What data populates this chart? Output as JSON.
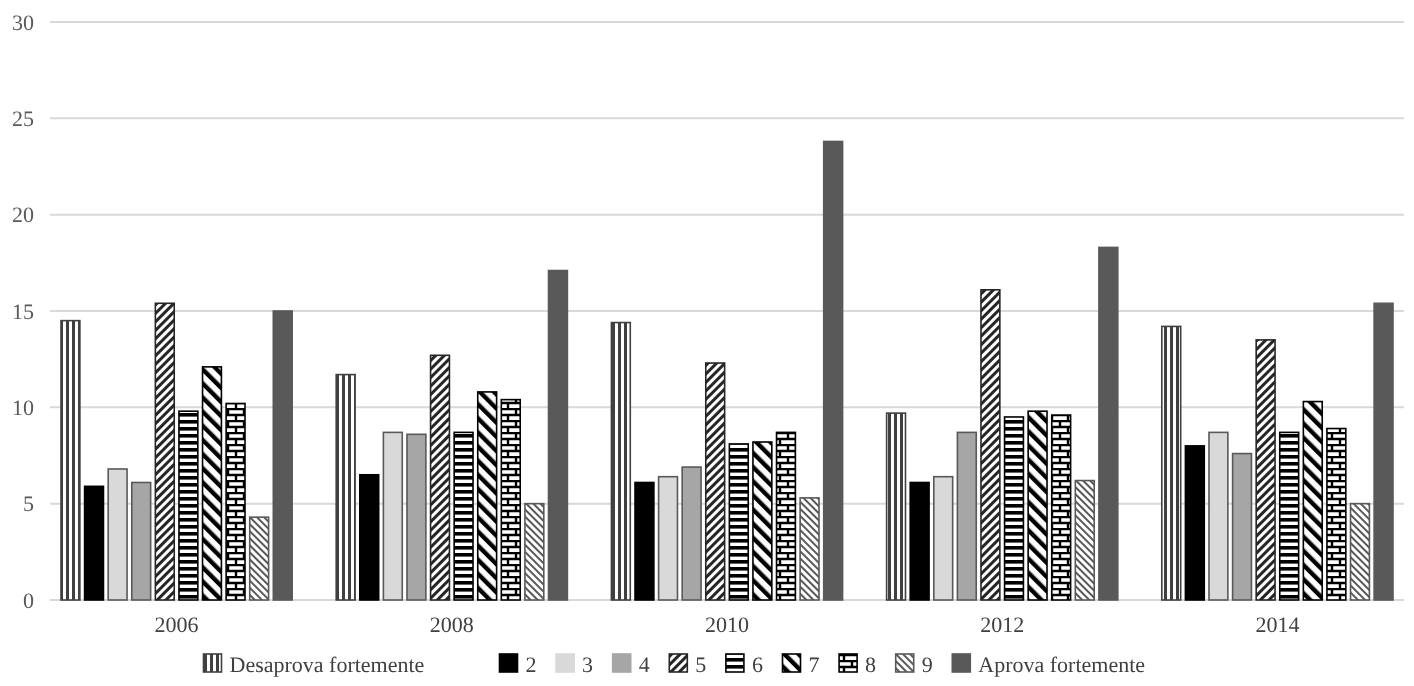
{
  "chart_data": {
    "type": "bar",
    "categories": [
      "2006",
      "2008",
      "2010",
      "2012",
      "2014"
    ],
    "series": [
      {
        "name": "Desaprova fortemente",
        "color": "#404040",
        "values": [
          14.5,
          11.7,
          14.4,
          9.7,
          14.2
        ]
      },
      {
        "name": "2",
        "color": "#000000",
        "values": [
          5.9,
          6.5,
          6.1,
          6.1,
          8.0
        ]
      },
      {
        "name": "3",
        "color": "#d9d9d9",
        "values": [
          6.8,
          8.7,
          6.4,
          6.4,
          8.7
        ]
      },
      {
        "name": "4",
        "color": "#a6a6a6",
        "values": [
          6.1,
          8.6,
          6.9,
          8.7,
          7.6
        ]
      },
      {
        "name": "5",
        "color": "#262626",
        "values": [
          15.4,
          12.7,
          12.3,
          16.1,
          13.5
        ]
      },
      {
        "name": "6",
        "color": "#000000",
        "values": [
          9.8,
          8.7,
          8.1,
          9.5,
          8.7
        ]
      },
      {
        "name": "7",
        "color": "#000000",
        "values": [
          12.1,
          10.8,
          8.2,
          9.8,
          10.3
        ]
      },
      {
        "name": "8",
        "color": "#000000",
        "values": [
          10.2,
          10.4,
          8.7,
          9.6,
          8.9
        ]
      },
      {
        "name": "9",
        "color": "#595959",
        "values": [
          4.3,
          5.0,
          5.3,
          6.2,
          5.0
        ]
      },
      {
        "name": "Aprova fortemente",
        "color": "#595959",
        "values": [
          15.0,
          17.1,
          23.8,
          18.3,
          15.4
        ]
      }
    ],
    "ylim": [
      0,
      30
    ],
    "yticks": [
      0,
      5,
      10,
      15,
      20,
      25,
      30
    ],
    "grid": "y",
    "legend": "bottom"
  }
}
